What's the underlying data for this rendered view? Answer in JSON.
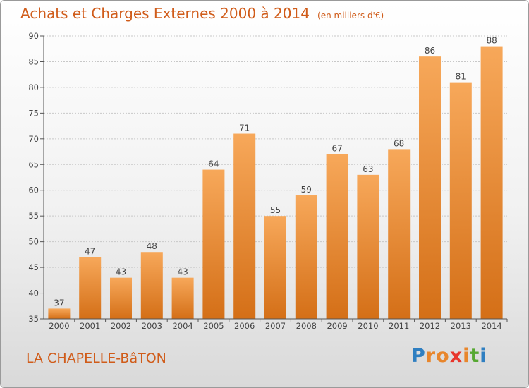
{
  "header": {
    "title": "Achats et Charges Externes 2000 à 2014",
    "unit": "(en milliers d'€)"
  },
  "footer": {
    "commune": "LA CHAPELLE-BâTON",
    "logo": "Proxiti"
  },
  "colors": {
    "bar_light": "#f7a85a",
    "bar_dark": "#d46f17",
    "title": "#d05c1a",
    "logo_letters": [
      "#2f7fc1",
      "#e8862c",
      "#e8862c",
      "#e8362c",
      "#e8862c",
      "#56a832",
      "#2f7fc1"
    ]
  },
  "chart_data": {
    "type": "bar",
    "title": "Achats et Charges Externes 2000 à 2014",
    "subtitle": "(en milliers d'€)",
    "categories": [
      "2000",
      "2001",
      "2002",
      "2003",
      "2004",
      "2005",
      "2006",
      "2007",
      "2008",
      "2009",
      "2010",
      "2011",
      "2012",
      "2013",
      "2014"
    ],
    "values": [
      37,
      47,
      43,
      48,
      43,
      64,
      71,
      55,
      59,
      67,
      63,
      68,
      86,
      81,
      88
    ],
    "ylim": [
      35,
      90
    ],
    "yticks": [
      35,
      40,
      45,
      50,
      55,
      60,
      65,
      70,
      75,
      80,
      85,
      90
    ],
    "grid": true,
    "xlabel": "",
    "ylabel": ""
  }
}
